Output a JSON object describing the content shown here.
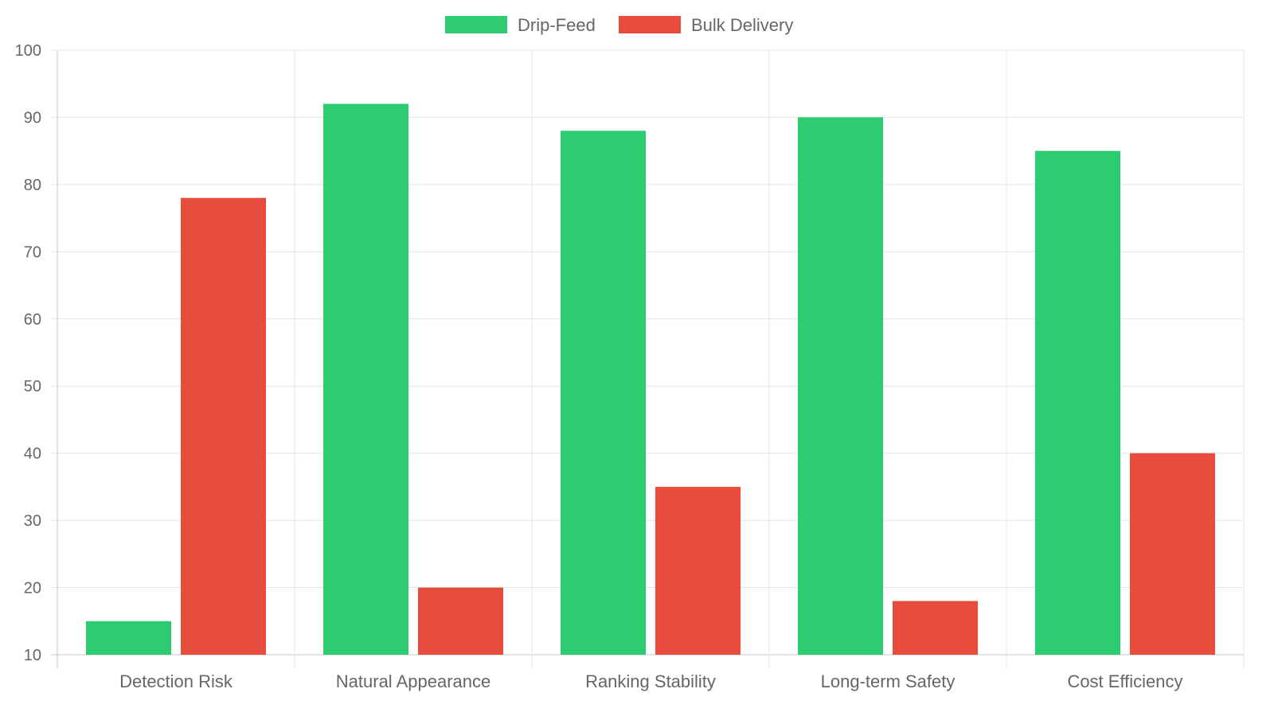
{
  "chart_data": {
    "type": "bar",
    "title": "",
    "xlabel": "",
    "ylabel": "",
    "categories": [
      "Detection Risk",
      "Natural Appearance",
      "Ranking Stability",
      "Long-term Safety",
      "Cost Efficiency"
    ],
    "series": [
      {
        "name": "Drip-Feed",
        "color": "#2ecc71",
        "values": [
          15,
          92,
          88,
          90,
          85
        ]
      },
      {
        "name": "Bulk Delivery",
        "color": "#e74c3c",
        "values": [
          78,
          20,
          35,
          18,
          40
        ]
      }
    ],
    "ylim": [
      10,
      100
    ],
    "yticks": [
      10,
      20,
      30,
      40,
      50,
      60,
      70,
      80,
      90,
      100
    ],
    "grid": true,
    "legend": "top-center"
  }
}
